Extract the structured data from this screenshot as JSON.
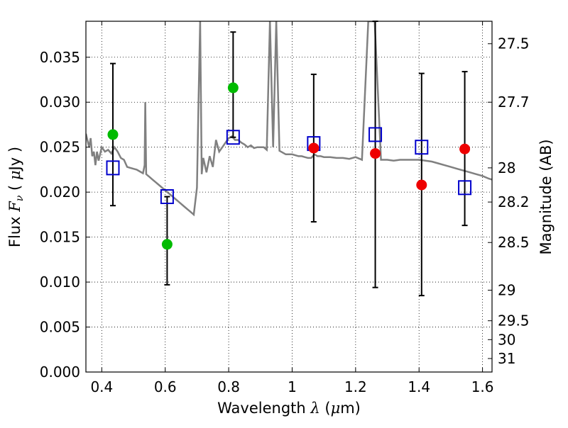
{
  "chart_data": {
    "type": "scatter",
    "xlabel": "Wavelength  λ (μm)",
    "ylabel": "Flux  F_ν  ( μJy )",
    "ylabel_parts": {
      "prefix": "Flux  ",
      "symbol": "F",
      "subscript": "ν",
      "open": "  ( ",
      "mu": "μ",
      "unit": "Jy )"
    },
    "xlabel_parts": {
      "prefix": "Wavelength  ",
      "symbol": "λ",
      "open": " (",
      "mu": "μ",
      "unit": "m)"
    },
    "y2label": "Magnitude (AB)",
    "xlim": [
      0.35,
      1.63
    ],
    "ylim": [
      0.0,
      0.039
    ],
    "grid": true,
    "x_ticks": [
      0.4,
      0.6,
      0.8,
      1.0,
      1.2,
      1.4,
      1.6
    ],
    "x_tick_labels": [
      "0.4",
      "0.6",
      "0.8",
      "1",
      "1.2",
      "1.4",
      "1.6"
    ],
    "y_ticks": [
      0.0,
      0.005,
      0.01,
      0.015,
      0.02,
      0.025,
      0.03,
      0.035
    ],
    "y_tick_labels": [
      "0.000",
      "0.005",
      "0.010",
      "0.015",
      "0.020",
      "0.025",
      "0.030",
      "0.035"
    ],
    "y2_ticks": [
      {
        "label": "27.5",
        "flux": 0.0365
      },
      {
        "label": "27.7",
        "flux": 0.03
      },
      {
        "label": "28",
        "flux": 0.0227
      },
      {
        "label": "28.2",
        "flux": 0.0189
      },
      {
        "label": "28.5",
        "flux": 0.0144
      },
      {
        "label": "29",
        "flux": 0.0091
      },
      {
        "label": "29.5",
        "flux": 0.0057
      },
      {
        "label": "30",
        "flux": 0.0036
      },
      {
        "label": "31",
        "flux": 0.0015
      }
    ],
    "series": [
      {
        "marker": "square",
        "color": "#0000cc",
        "points": [
          {
            "x": 0.435,
            "y": 0.0227,
            "yerr": [
              0.0185,
              0.0343
            ]
          },
          {
            "x": 0.606,
            "y": 0.0195,
            "yerr": [
              0.0097,
              0.0195
            ]
          },
          {
            "x": 0.814,
            "y": 0.0261,
            "yerr": [
              0.0261,
              0.0378
            ]
          },
          {
            "x": 1.068,
            "y": 0.0254,
            "yerr": [
              0.0167,
              0.0331
            ]
          },
          {
            "x": 1.262,
            "y": 0.0264,
            "yerr": [
              0.0094,
              0.039
            ]
          },
          {
            "x": 1.408,
            "y": 0.025,
            "yerr": [
              0.0085,
              0.0332
            ]
          },
          {
            "x": 1.544,
            "y": 0.0205,
            "yerr": [
              0.0163,
              0.0334
            ]
          }
        ]
      },
      {
        "marker": "circle",
        "color": "#00bb00",
        "points": [
          {
            "x": 0.435,
            "y": 0.0264
          },
          {
            "x": 0.606,
            "y": 0.0142
          },
          {
            "x": 0.814,
            "y": 0.0316
          }
        ]
      },
      {
        "marker": "circle",
        "color": "#ee0000",
        "points": [
          {
            "x": 1.068,
            "y": 0.0249
          },
          {
            "x": 1.262,
            "y": 0.0243
          },
          {
            "x": 1.408,
            "y": 0.0208
          },
          {
            "x": 1.544,
            "y": 0.0248
          }
        ]
      }
    ],
    "spectrum": {
      "color": "#808080",
      "x": [
        0.35,
        0.36,
        0.365,
        0.37,
        0.375,
        0.38,
        0.385,
        0.39,
        0.4,
        0.41,
        0.42,
        0.43,
        0.44,
        0.45,
        0.46,
        0.47,
        0.48,
        0.49,
        0.5,
        0.51,
        0.52,
        0.53,
        0.535,
        0.537,
        0.54,
        0.55,
        0.56,
        0.57,
        0.58,
        0.59,
        0.6,
        0.61,
        0.62,
        0.63,
        0.64,
        0.65,
        0.66,
        0.67,
        0.68,
        0.69,
        0.7,
        0.705,
        0.71,
        0.715,
        0.72,
        0.73,
        0.74,
        0.75,
        0.76,
        0.77,
        0.78,
        0.79,
        0.8,
        0.81,
        0.82,
        0.83,
        0.84,
        0.85,
        0.86,
        0.87,
        0.88,
        0.89,
        0.9,
        0.91,
        0.92,
        0.93,
        0.94,
        0.95,
        0.96,
        0.97,
        0.98,
        0.99,
        1.0,
        1.01,
        1.02,
        1.03,
        1.04,
        1.05,
        1.06,
        1.07,
        1.08,
        1.09,
        1.1,
        1.12,
        1.14,
        1.16,
        1.18,
        1.2,
        1.22,
        1.24,
        1.26,
        1.28,
        1.3,
        1.32,
        1.34,
        1.36,
        1.38,
        1.4,
        1.42,
        1.44,
        1.46,
        1.48,
        1.5,
        1.52,
        1.54,
        1.56,
        1.58,
        1.6,
        1.62,
        1.63
      ],
      "y": [
        0.0265,
        0.025,
        0.026,
        0.024,
        0.0245,
        0.023,
        0.0245,
        0.0235,
        0.025,
        0.0245,
        0.0247,
        0.0243,
        0.025,
        0.0245,
        0.0238,
        0.0236,
        0.0228,
        0.0227,
        0.0226,
        0.0225,
        0.0223,
        0.0221,
        0.023,
        0.03,
        0.022,
        0.0217,
        0.0214,
        0.0211,
        0.0208,
        0.0205,
        0.0202,
        0.0199,
        0.0196,
        0.0193,
        0.019,
        0.0187,
        0.0184,
        0.0181,
        0.0178,
        0.0175,
        0.0205,
        0.03,
        0.039,
        0.022,
        0.0238,
        0.0222,
        0.024,
        0.0228,
        0.0258,
        0.0245,
        0.025,
        0.0255,
        0.026,
        0.0262,
        0.0258,
        0.0258,
        0.0255,
        0.0253,
        0.025,
        0.0252,
        0.0249,
        0.025,
        0.025,
        0.025,
        0.0247,
        0.039,
        0.025,
        0.039,
        0.0246,
        0.0244,
        0.0242,
        0.0242,
        0.0242,
        0.0241,
        0.024,
        0.024,
        0.0239,
        0.0238,
        0.0238,
        0.0242,
        0.024,
        0.024,
        0.0239,
        0.0239,
        0.0238,
        0.0238,
        0.0237,
        0.0239,
        0.0236,
        0.039,
        0.039,
        0.0236,
        0.0236,
        0.0235,
        0.0236,
        0.0236,
        0.0236,
        0.0236,
        0.0235,
        0.0234,
        0.0232,
        0.023,
        0.0228,
        0.0226,
        0.0224,
        0.0222,
        0.022,
        0.0218,
        0.0215,
        0.0214
      ]
    }
  }
}
